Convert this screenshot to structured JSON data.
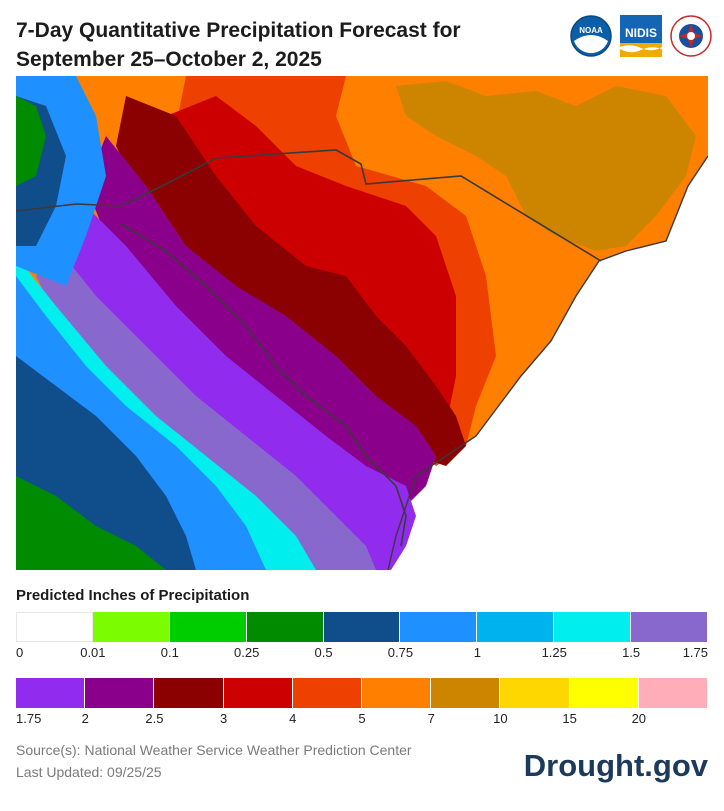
{
  "title_line1": "7-Day Quantitative Precipitation Forecast for",
  "title_line2": "September 25–October 2, 2025",
  "logos": [
    {
      "name": "noaa-logo",
      "text": "NOAA"
    },
    {
      "name": "nidis-logo",
      "text": "NIDIS"
    },
    {
      "name": "nws-logo",
      "text": ""
    }
  ],
  "legend": {
    "title": "Predicted Inches of Precipitation",
    "row1_colors": [
      "#ffffff",
      "#7cfc00",
      "#00cd00",
      "#008b00",
      "#104e8b",
      "#1e90ff",
      "#00b2ee",
      "#00eeee",
      "#8968cd"
    ],
    "row1_ticks": [
      "0",
      "0.01",
      "0.1",
      "0.25",
      "0.5",
      "0.75",
      "1",
      "1.25",
      "1.5",
      "1.75"
    ],
    "row2_colors": [
      "#912cee",
      "#8b008b",
      "#8b0000",
      "#cd0000",
      "#ee4000",
      "#ff7f00",
      "#cd8500",
      "#ffd700",
      "#ffff00",
      "#ffaeb9"
    ],
    "row2_ticks": [
      "1.75",
      "2",
      "2.5",
      "3",
      "4",
      "5",
      "7",
      "10",
      "15",
      "20"
    ]
  },
  "source_line1": "Source(s): National Weather Service Weather Prediction Center",
  "source_line2": "Last Updated: 09/25/25",
  "brand": "Drought.gov"
}
